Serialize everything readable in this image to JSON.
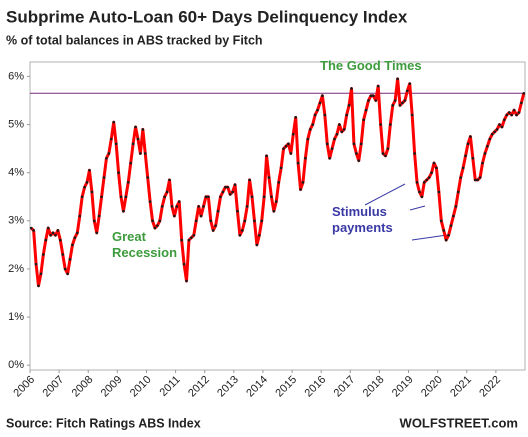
{
  "chart_data": {
    "type": "line",
    "title": "Subprime Auto-Loan 60+ Days Delinquency Index",
    "subtitle": "% of total balances in ABS tracked by Fitch",
    "categories": [
      "2006",
      null,
      null,
      null,
      null,
      null,
      null,
      null,
      null,
      null,
      null,
      null,
      "2007",
      null,
      null,
      null,
      null,
      null,
      null,
      null,
      null,
      null,
      null,
      null,
      "2008",
      null,
      null,
      null,
      null,
      null,
      null,
      null,
      null,
      null,
      null,
      null,
      "2009",
      null,
      null,
      null,
      null,
      null,
      null,
      null,
      null,
      null,
      null,
      null,
      "2010",
      null,
      null,
      null,
      null,
      null,
      null,
      null,
      null,
      null,
      null,
      null,
      "2011",
      null,
      null,
      null,
      null,
      null,
      null,
      null,
      null,
      null,
      null,
      null,
      "2012",
      null,
      null,
      null,
      null,
      null,
      null,
      null,
      null,
      null,
      null,
      null,
      "2013",
      null,
      null,
      null,
      null,
      null,
      null,
      null,
      null,
      null,
      null,
      null,
      "2014",
      null,
      null,
      null,
      null,
      null,
      null,
      null,
      null,
      null,
      null,
      null,
      "2015",
      null,
      null,
      null,
      null,
      null,
      null,
      null,
      null,
      null,
      null,
      null,
      "2016",
      null,
      null,
      null,
      null,
      null,
      null,
      null,
      null,
      null,
      null,
      null,
      "2017",
      null,
      null,
      null,
      null,
      null,
      null,
      null,
      null,
      null,
      null,
      null,
      "2018",
      null,
      null,
      null,
      null,
      null,
      null,
      null,
      null,
      null,
      null,
      null,
      "2019",
      null,
      null,
      null,
      null,
      null,
      null,
      null,
      null,
      null,
      null,
      null,
      "2020",
      null,
      null,
      null,
      null,
      null,
      null,
      null,
      null,
      null,
      null,
      null,
      "2021",
      null,
      null,
      null,
      null,
      null,
      null,
      null,
      null,
      null,
      null,
      null,
      "2022",
      null,
      null,
      null,
      null,
      null,
      null,
      null,
      null,
      null,
      null,
      null
    ],
    "series": [
      {
        "color": "#ff0000",
        "marker_color": "#1a1a1a",
        "values": [
          2.85,
          2.8,
          2.1,
          1.65,
          1.9,
          2.3,
          2.6,
          2.85,
          2.7,
          2.75,
          2.7,
          2.8,
          2.6,
          2.3,
          2.0,
          1.9,
          2.2,
          2.5,
          2.65,
          2.75,
          3.1,
          3.5,
          3.7,
          3.8,
          4.05,
          3.6,
          3.0,
          2.75,
          3.1,
          3.5,
          3.9,
          4.3,
          4.4,
          4.7,
          5.05,
          4.6,
          4.0,
          3.5,
          3.2,
          3.5,
          3.8,
          4.2,
          4.6,
          4.95,
          4.7,
          4.4,
          4.9,
          4.4,
          3.9,
          3.4,
          3.0,
          2.85,
          2.9,
          3.0,
          3.3,
          3.5,
          3.6,
          3.85,
          3.3,
          3.1,
          3.3,
          3.4,
          2.6,
          2.1,
          1.75,
          2.6,
          2.65,
          2.7,
          3.0,
          3.3,
          3.1,
          3.3,
          3.5,
          3.5,
          3.0,
          2.8,
          2.9,
          3.2,
          3.5,
          3.6,
          3.7,
          3.7,
          3.55,
          3.6,
          3.75,
          3.2,
          2.7,
          2.8,
          3.0,
          3.3,
          3.85,
          3.5,
          3.0,
          2.5,
          2.7,
          3.0,
          3.5,
          4.35,
          3.9,
          3.5,
          3.2,
          3.4,
          3.8,
          4.1,
          4.5,
          4.55,
          4.6,
          4.4,
          4.8,
          5.15,
          4.2,
          3.65,
          3.8,
          4.3,
          4.7,
          4.9,
          5.0,
          5.2,
          5.3,
          5.45,
          5.6,
          5.2,
          4.6,
          4.3,
          4.5,
          4.7,
          4.8,
          5.0,
          4.85,
          4.9,
          5.2,
          5.4,
          5.75,
          4.6,
          4.4,
          4.25,
          4.6,
          5.1,
          5.3,
          5.5,
          5.6,
          5.6,
          5.5,
          5.8,
          5.0,
          4.4,
          4.35,
          4.5,
          5.0,
          5.4,
          5.5,
          5.95,
          5.4,
          5.45,
          5.5,
          5.7,
          5.85,
          5.2,
          4.4,
          3.8,
          3.6,
          3.5,
          3.8,
          3.85,
          3.9,
          4.0,
          4.2,
          4.1,
          3.6,
          3.0,
          2.8,
          2.6,
          2.7,
          2.9,
          3.1,
          3.3,
          3.6,
          3.9,
          4.1,
          4.35,
          4.6,
          4.75,
          4.3,
          3.85,
          3.85,
          3.9,
          4.2,
          4.4,
          4.55,
          4.7,
          4.8,
          4.85,
          4.9,
          5.0,
          4.95,
          5.1,
          5.2,
          5.25,
          5.2,
          5.3,
          5.2,
          5.25,
          5.45,
          5.65
        ]
      }
    ],
    "ylim": [
      -0.1,
      6.3
    ],
    "yticks": [
      {
        "value": 0,
        "label": "0%"
      },
      {
        "value": 1,
        "label": "1%"
      },
      {
        "value": 2,
        "label": "2%"
      },
      {
        "value": 3,
        "label": "3%"
      },
      {
        "value": 4,
        "label": "4%"
      },
      {
        "value": 5,
        "label": "5%"
      },
      {
        "value": 6,
        "label": "6%"
      }
    ],
    "reference_line": {
      "value": 5.65,
      "color": "#7a2d7a"
    },
    "annotations": [
      {
        "text": "The Good Times",
        "color": "#3c9b3c"
      },
      {
        "text": "Great Recession",
        "color": "#3c9b3c"
      },
      {
        "text": "Stimulus payments",
        "color": "#3a3aa6"
      }
    ],
    "source": "Source: Fitch Ratings ABS Index",
    "brand": "WOLFSTREET.com"
  }
}
